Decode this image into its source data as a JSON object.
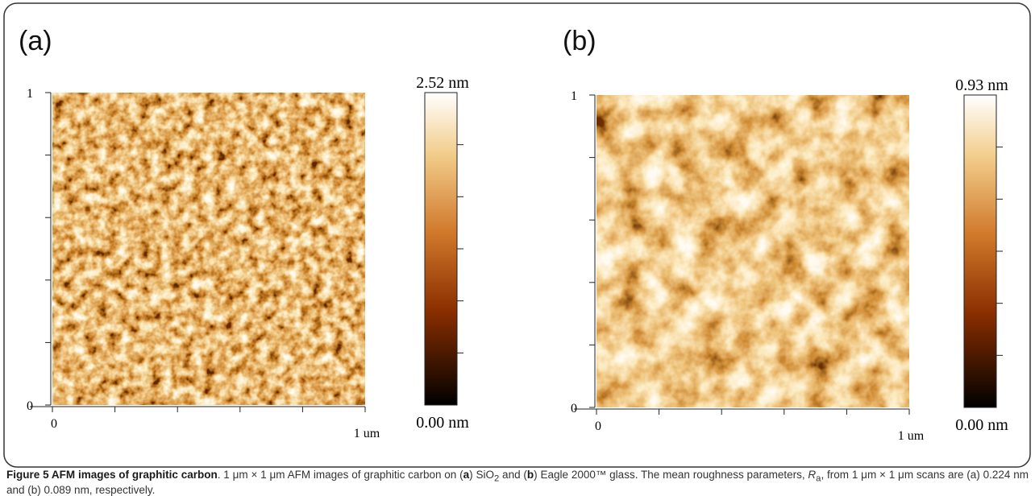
{
  "panels": [
    {
      "label": "(a)",
      "y_labels": [
        "1",
        "0"
      ],
      "x_labels": [
        "0",
        "1 um"
      ],
      "colorbar_max": "2.52 nm",
      "colorbar_min": "0.00 nm"
    },
    {
      "label": "(b)",
      "y_labels": [
        "1",
        "0"
      ],
      "x_labels": [
        "0",
        "1 um"
      ],
      "colorbar_max": "0.93 nm",
      "colorbar_min": "0.00 nm"
    }
  ],
  "caption": {
    "parts": [
      "Figure 5 AFM images of graphitic carbon",
      ". 1 μm × 1 μm AFM images of graphitic carbon on (",
      "a",
      ") SiO",
      "2",
      " and (",
      "b",
      ") Eagle 2000™ glass. The mean roughness parameters, ",
      "R",
      "a",
      ", from 1 μm × 1 μm scans are (a) 0.224 nm and (b) 0.089 nm, respectively."
    ]
  }
}
